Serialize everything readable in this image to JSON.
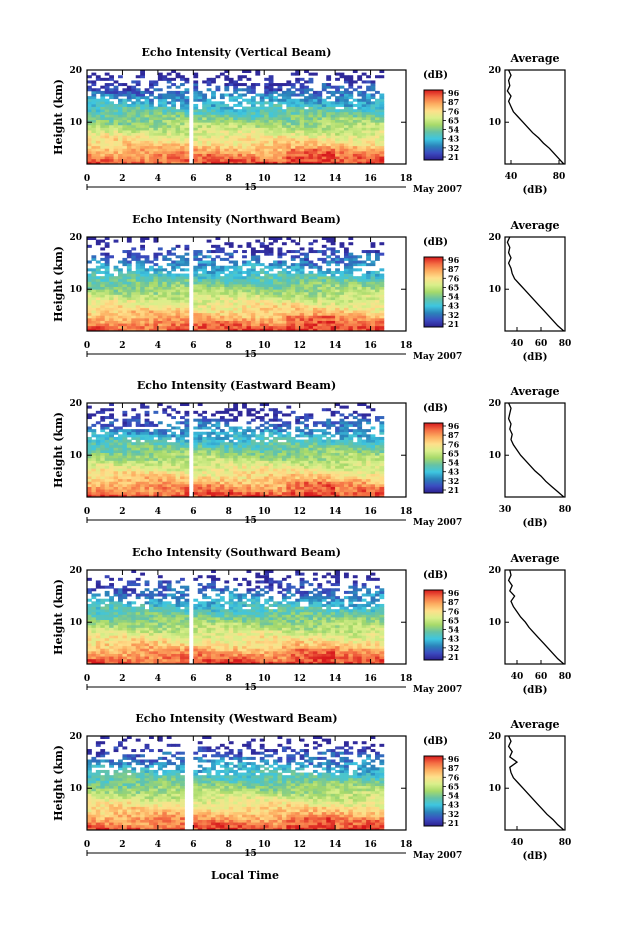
{
  "figure": {
    "x_axis_title": "Local Time",
    "date_label": "May 2007",
    "day_label": "15"
  },
  "colorbar": {
    "unit": "(dB)",
    "ticks": [
      "96",
      "87",
      "76",
      "65",
      "54",
      "43",
      "32",
      "21"
    ],
    "stops": [
      "#d7191c",
      "#f46d43",
      "#fdae61",
      "#fee08b",
      "#d9ef8b",
      "#a6d96a",
      "#66c2a5",
      "#3ec6e0",
      "#2b83ba",
      "#3b4cc0",
      "#2c1f8f"
    ]
  },
  "chart_data": [
    {
      "type": "heatmap",
      "title": "Echo Intensity (Vertical Beam)",
      "xlabel": "",
      "ylabel": "Height (km)",
      "xlim": [
        0,
        18
      ],
      "ylim": [
        2,
        20
      ],
      "xticks": [
        0,
        2,
        4,
        6,
        8,
        10,
        12,
        14,
        16,
        18
      ],
      "yticks": [
        10,
        20
      ],
      "data_gap_hours": [
        5.8,
        6.0
      ],
      "data_end_hour": 16.7,
      "colorbar_ticks_db": [
        96,
        87,
        76,
        65,
        54,
        43,
        32,
        21
      ],
      "average_profile": {
        "title": "Average",
        "xlabel": "(dB)",
        "xlim": [
          35,
          85
        ],
        "xticks": [
          40,
          80
        ],
        "yticks": [
          10,
          20
        ],
        "x": [
          84,
          80,
          76,
          72,
          67,
          63,
          58,
          54,
          50,
          46,
          42,
          40,
          38,
          40,
          37,
          39,
          38,
          40,
          38
        ],
        "y": [
          2,
          3,
          4,
          5,
          6,
          7,
          8,
          9,
          10,
          11,
          12,
          13,
          14,
          15,
          16,
          17,
          18,
          19,
          20
        ]
      }
    },
    {
      "type": "heatmap",
      "title": "Echo Intensity (Northward Beam)",
      "xlabel": "",
      "ylabel": "Height (km)",
      "xlim": [
        0,
        18
      ],
      "ylim": [
        2,
        20
      ],
      "xticks": [
        0,
        2,
        4,
        6,
        8,
        10,
        12,
        14,
        16,
        18
      ],
      "yticks": [
        10,
        20
      ],
      "data_gap_hours": [
        5.8,
        6.0
      ],
      "data_end_hour": 16.7,
      "colorbar_ticks_db": [
        96,
        87,
        76,
        65,
        54,
        43,
        32,
        21
      ],
      "average_profile": {
        "title": "Average",
        "xlabel": "(dB)",
        "xlim": [
          30,
          80
        ],
        "xticks": [
          40,
          60,
          80
        ],
        "yticks": [
          10,
          20
        ],
        "x": [
          79,
          74,
          70,
          66,
          62,
          58,
          54,
          50,
          46,
          42,
          38,
          36,
          35,
          33,
          35,
          33,
          34,
          32,
          34
        ],
        "y": [
          2,
          3,
          4,
          5,
          6,
          7,
          8,
          9,
          10,
          11,
          12,
          13,
          14,
          15,
          16,
          17,
          18,
          19,
          20
        ]
      }
    },
    {
      "type": "heatmap",
      "title": "Echo Intensity (Eastward Beam)",
      "xlabel": "",
      "ylabel": "Height (km)",
      "xlim": [
        0,
        18
      ],
      "ylim": [
        2,
        20
      ],
      "xticks": [
        0,
        2,
        4,
        6,
        8,
        10,
        12,
        14,
        16,
        18
      ],
      "yticks": [
        10,
        20
      ],
      "data_gap_hours": [
        5.8,
        6.0
      ],
      "data_end_hour": 16.7,
      "colorbar_ticks_db": [
        96,
        87,
        76,
        65,
        54,
        43,
        32,
        21
      ],
      "average_profile": {
        "title": "Average",
        "xlabel": "(dB)",
        "xlim": [
          30,
          80
        ],
        "xticks": [
          30,
          80
        ],
        "yticks": [
          10,
          20
        ],
        "x": [
          79,
          74,
          69,
          64,
          60,
          55,
          51,
          47,
          43,
          40,
          37,
          35,
          36,
          34,
          35,
          33,
          34,
          35,
          33
        ],
        "y": [
          2,
          3,
          4,
          5,
          6,
          7,
          8,
          9,
          10,
          11,
          12,
          13,
          14,
          15,
          16,
          17,
          18,
          19,
          20
        ]
      }
    },
    {
      "type": "heatmap",
      "title": "Echo Intensity (Southward Beam)",
      "xlabel": "",
      "ylabel": "Height (km)",
      "xlim": [
        0,
        18
      ],
      "ylim": [
        2,
        20
      ],
      "xticks": [
        0,
        2,
        4,
        6,
        8,
        10,
        12,
        14,
        16,
        18
      ],
      "yticks": [
        10,
        20
      ],
      "data_gap_hours": [
        5.8,
        6.0
      ],
      "data_end_hour": 16.7,
      "colorbar_ticks_db": [
        96,
        87,
        76,
        65,
        54,
        43,
        32,
        21
      ],
      "average_profile": {
        "title": "Average",
        "xlabel": "(dB)",
        "xlim": [
          30,
          80
        ],
        "xticks": [
          40,
          60,
          80
        ],
        "yticks": [
          10,
          20
        ],
        "x": [
          79,
          74,
          70,
          66,
          62,
          58,
          54,
          50,
          47,
          43,
          40,
          37,
          35,
          38,
          34,
          36,
          33,
          35,
          34
        ],
        "y": [
          2,
          3,
          4,
          5,
          6,
          7,
          8,
          9,
          10,
          11,
          12,
          13,
          14,
          15,
          16,
          17,
          18,
          19,
          20
        ]
      }
    },
    {
      "type": "heatmap",
      "title": "Echo Intensity (Westward Beam)",
      "xlabel": "",
      "ylabel": "Height (km)",
      "xlim": [
        0,
        18
      ],
      "ylim": [
        2,
        20
      ],
      "xticks": [
        0,
        2,
        4,
        6,
        8,
        10,
        12,
        14,
        16,
        18
      ],
      "yticks": [
        10,
        20
      ],
      "data_gap_hours": [
        5.6,
        5.8
      ],
      "data_end_hour": 16.7,
      "colorbar_ticks_db": [
        96,
        87,
        76,
        65,
        54,
        43,
        32,
        21
      ],
      "average_profile": {
        "title": "Average",
        "xlabel": "(dB)",
        "xlim": [
          30,
          80
        ],
        "xticks": [
          40,
          80
        ],
        "yticks": [
          10,
          20
        ],
        "x": [
          79,
          74,
          70,
          65,
          61,
          57,
          53,
          49,
          45,
          41,
          37,
          35,
          34,
          40,
          34,
          36,
          33,
          35,
          33
        ],
        "y": [
          2,
          3,
          4,
          5,
          6,
          7,
          8,
          9,
          10,
          11,
          12,
          13,
          14,
          15,
          16,
          17,
          18,
          19,
          20
        ]
      }
    }
  ]
}
